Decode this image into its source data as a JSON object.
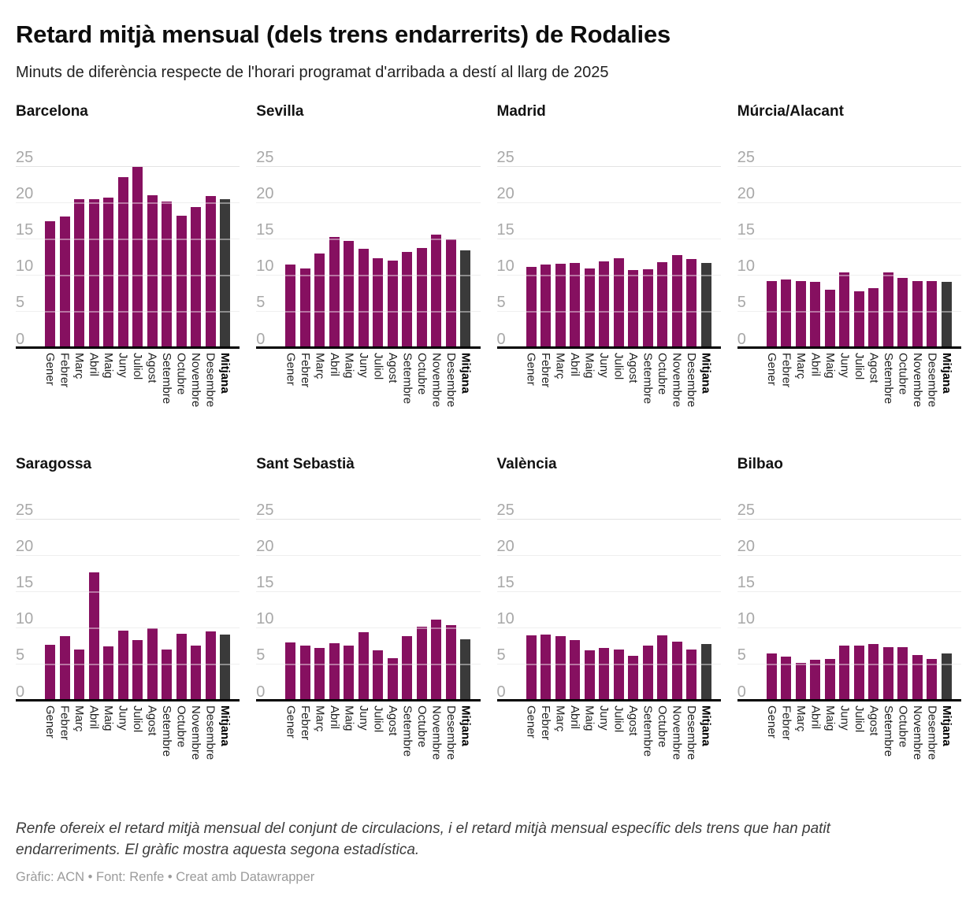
{
  "header": {
    "title": "Retard mitjà mensual (dels trens endarrerits) de Rodalies",
    "subtitle": "Minuts de diferència respecte de l'horari programat d'arribada a destí al llarg de 2025"
  },
  "chart_data": {
    "type": "bar",
    "layout": "small-multiples-2x4",
    "categories": [
      "Gener",
      "Febrer",
      "Març",
      "Abril",
      "Maig",
      "Juny",
      "Juliol",
      "Agost",
      "Setembre",
      "Octubre",
      "Novembre",
      "Desembre",
      "Mitjana"
    ],
    "ylabel": "",
    "xlabel": "",
    "ylim": [
      0,
      25
    ],
    "yticks": [
      25,
      20,
      15,
      10,
      5,
      0
    ],
    "grid": true,
    "bar_color": "#861060",
    "mitjana_color": "#3a3a3a",
    "panels": [
      {
        "title": "Barcelona",
        "values": [
          17.4,
          18.0,
          20.4,
          20.4,
          20.6,
          23.4,
          24.9,
          21.0,
          20.1,
          18.1,
          19.3,
          20.8,
          20.4
        ]
      },
      {
        "title": "Sevilla",
        "values": [
          11.4,
          10.9,
          12.9,
          15.2,
          14.7,
          13.6,
          12.3,
          12.0,
          13.2,
          13.7,
          15.5,
          14.9,
          13.4
        ]
      },
      {
        "title": "Madrid",
        "values": [
          11.1,
          11.4,
          11.5,
          11.6,
          10.9,
          11.9,
          12.3,
          10.7,
          10.8,
          11.8,
          12.7,
          12.2,
          11.6
        ]
      },
      {
        "title": "Múrcia/Alacant",
        "values": [
          9.2,
          9.4,
          9.2,
          9.1,
          8.0,
          10.3,
          7.8,
          8.2,
          10.4,
          9.6,
          9.2,
          9.2,
          9.1
        ]
      },
      {
        "title": "Saragossa",
        "values": [
          7.7,
          8.8,
          7.0,
          17.6,
          7.4,
          9.6,
          8.3,
          9.9,
          7.0,
          9.2,
          7.5,
          9.5,
          9.1
        ]
      },
      {
        "title": "Sant Sebastià",
        "values": [
          8.0,
          7.5,
          7.2,
          7.9,
          7.5,
          9.4,
          6.9,
          5.8,
          8.8,
          10.1,
          11.1,
          10.4,
          8.4
        ]
      },
      {
        "title": "València",
        "values": [
          8.9,
          9.0,
          8.8,
          8.3,
          6.9,
          7.2,
          7.0,
          6.1,
          7.5,
          8.9,
          8.1,
          7.0,
          7.8
        ]
      },
      {
        "title": "Bilbao",
        "values": [
          6.5,
          6.0,
          5.2,
          5.6,
          5.7,
          7.5,
          7.5,
          7.8,
          7.3,
          7.3,
          6.2,
          5.7,
          6.5
        ]
      }
    ]
  },
  "footer": {
    "note": "Renfe ofereix el retard mitjà mensual del conjunt de circulacions, i el retard mitjà mensual específic dels trens que han patit endarreriments. El gràfic mostra aquesta segona estadística.",
    "credit": "Gràfic: ACN • Font: Renfe • Creat amb Datawrapper"
  }
}
